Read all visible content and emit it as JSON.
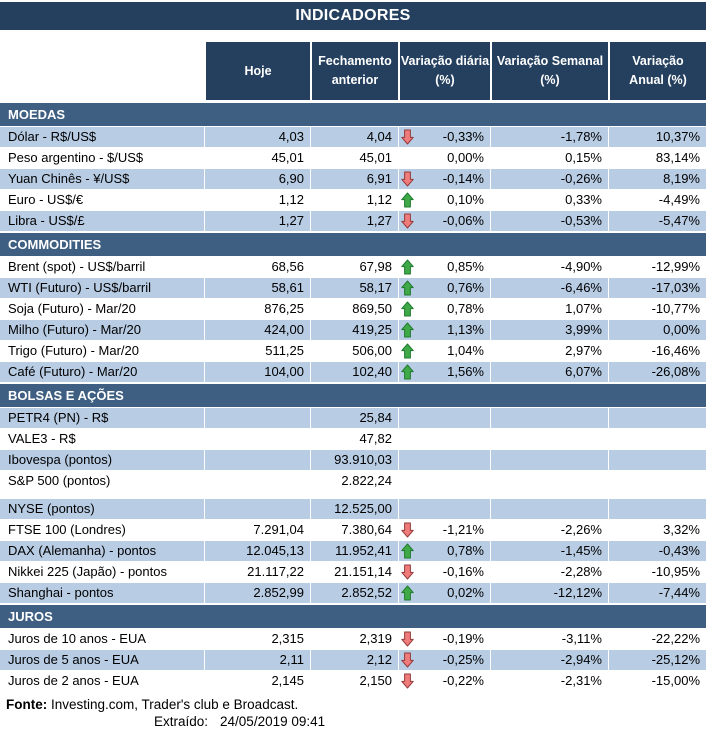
{
  "title": "INDICADORES",
  "columns": [
    {
      "id": "label",
      "lines": []
    },
    {
      "id": "hoje",
      "lines": [
        "Hoje"
      ]
    },
    {
      "id": "fechamento-anterior",
      "lines": [
        "Fechamento",
        "anterior"
      ]
    },
    {
      "id": "variacao-diaria",
      "lines": [
        "Variação diária",
        "(%)"
      ]
    },
    {
      "id": "variacao-semanal",
      "lines": [
        "Variação Semanal",
        "(%)"
      ]
    },
    {
      "id": "variacao-anual",
      "lines": [
        "Variação",
        "Anual (%)"
      ]
    }
  ],
  "sections": [
    {
      "id": "moedas",
      "name": "MOEDAS",
      "rows": [
        {
          "label": "Dólar - R$/US$",
          "hoje": "4,03",
          "fechamento": "4,04",
          "arrow": "down",
          "diaria": "-0,33%",
          "semanal": "-1,78%",
          "anual": "10,37%",
          "shaded": true
        },
        {
          "label": "Peso argentino - $/US$",
          "hoje": "45,01",
          "fechamento": "45,01",
          "arrow": null,
          "diaria": "0,00%",
          "semanal": "0,15%",
          "anual": "83,14%",
          "shaded": false
        },
        {
          "label": "Yuan Chinês - ¥/US$",
          "hoje": "6,90",
          "fechamento": "6,91",
          "arrow": "down",
          "diaria": "-0,14%",
          "semanal": "-0,26%",
          "anual": "8,19%",
          "shaded": true
        },
        {
          "label": "Euro - US$/€",
          "hoje": "1,12",
          "fechamento": "1,12",
          "arrow": "up",
          "diaria": "0,10%",
          "semanal": "0,33%",
          "anual": "-4,49%",
          "shaded": false
        },
        {
          "label": "Libra - US$/£",
          "hoje": "1,27",
          "fechamento": "1,27",
          "arrow": "down",
          "diaria": "-0,06%",
          "semanal": "-0,53%",
          "anual": "-5,47%",
          "shaded": true
        }
      ]
    },
    {
      "id": "commodities",
      "name": "COMMODITIES",
      "rows": [
        {
          "label": "Brent (spot) - US$/barril",
          "hoje": "68,56",
          "fechamento": "67,98",
          "arrow": "up",
          "diaria": "0,85%",
          "semanal": "-4,90%",
          "anual": "-12,99%",
          "shaded": false
        },
        {
          "label": "WTI (Futuro) - US$/barril",
          "hoje": "58,61",
          "fechamento": "58,17",
          "arrow": "up",
          "diaria": "0,76%",
          "semanal": "-6,46%",
          "anual": "-17,03%",
          "shaded": true
        },
        {
          "label": "Soja (Futuro) - Mar/20",
          "hoje": "876,25",
          "fechamento": "869,50",
          "arrow": "up",
          "diaria": "0,78%",
          "semanal": "1,07%",
          "anual": "-10,77%",
          "shaded": false
        },
        {
          "label": "Milho (Futuro) - Mar/20",
          "hoje": "424,00",
          "fechamento": "419,25",
          "arrow": "up",
          "diaria": "1,13%",
          "semanal": "3,99%",
          "anual": "0,00%",
          "shaded": true
        },
        {
          "label": "Trigo (Futuro) - Mar/20",
          "hoje": "511,25",
          "fechamento": "506,00",
          "arrow": "up",
          "diaria": "1,04%",
          "semanal": "2,97%",
          "anual": "-16,46%",
          "shaded": false
        },
        {
          "label": "Café (Futuro) - Mar/20",
          "hoje": "104,00",
          "fechamento": "102,40",
          "arrow": "up",
          "diaria": "1,56%",
          "semanal": "6,07%",
          "anual": "-26,08%",
          "shaded": true
        }
      ]
    },
    {
      "id": "bolsas-e-acoes",
      "name": "BOLSAS E AÇÕES",
      "rows": [
        {
          "label": "PETR4 (PN) - R$",
          "hoje": "",
          "fechamento": "25,84",
          "arrow": null,
          "diaria": "",
          "semanal": "",
          "anual": "",
          "shaded": true
        },
        {
          "label": "VALE3 - R$",
          "hoje": "",
          "fechamento": "47,82",
          "arrow": null,
          "diaria": "",
          "semanal": "",
          "anual": "",
          "shaded": false
        },
        {
          "label": "Ibovespa (pontos)",
          "hoje": "",
          "fechamento": "93.910,03",
          "arrow": null,
          "diaria": "",
          "semanal": "",
          "anual": "",
          "shaded": true
        },
        {
          "label": "S&P 500 (pontos)",
          "hoje": "",
          "fechamento": "2.822,24",
          "arrow": null,
          "diaria": "",
          "semanal": "",
          "anual": "",
          "shaded": false,
          "spacer_after": true
        },
        {
          "label": "NYSE (pontos)",
          "hoje": "",
          "fechamento": "12.525,00",
          "arrow": null,
          "diaria": "",
          "semanal": "",
          "anual": "",
          "shaded": true
        },
        {
          "label": "FTSE 100 (Londres)",
          "hoje": "7.291,04",
          "fechamento": "7.380,64",
          "arrow": "down",
          "diaria": "-1,21%",
          "semanal": "-2,26%",
          "anual": "3,32%",
          "shaded": false
        },
        {
          "label": "DAX (Alemanha) - pontos",
          "hoje": "12.045,13",
          "fechamento": "11.952,41",
          "arrow": "up",
          "diaria": "0,78%",
          "semanal": "-1,45%",
          "anual": "-0,43%",
          "shaded": true
        },
        {
          "label": "Nikkei 225 (Japão) - pontos",
          "hoje": "21.117,22",
          "fechamento": "21.151,14",
          "arrow": "down",
          "diaria": "-0,16%",
          "semanal": "-2,28%",
          "anual": "-10,95%",
          "shaded": false
        },
        {
          "label": "Shanghai - pontos",
          "hoje": "2.852,99",
          "fechamento": "2.852,52",
          "arrow": "up",
          "diaria": "0,02%",
          "semanal": "-12,12%",
          "anual": "-7,44%",
          "shaded": true
        }
      ]
    },
    {
      "id": "juros",
      "name": "JUROS",
      "rows": [
        {
          "label": "Juros de 10 anos - EUA",
          "hoje": "2,315",
          "fechamento": "2,319",
          "arrow": "down",
          "diaria": "-0,19%",
          "semanal": "-3,11%",
          "anual": "-22,22%",
          "shaded": false
        },
        {
          "label": "Juros de 5 anos - EUA",
          "hoje": "2,11",
          "fechamento": "2,12",
          "arrow": "down",
          "diaria": "-0,25%",
          "semanal": "-2,94%",
          "anual": "-25,12%",
          "shaded": true
        },
        {
          "label": "Juros de 2 anos - EUA",
          "hoje": "2,145",
          "fechamento": "2,150",
          "arrow": "down",
          "diaria": "-0,22%",
          "semanal": "-2,31%",
          "anual": "-15,00%",
          "shaded": false
        }
      ]
    }
  ],
  "footer": {
    "fonte_label": "Fonte:",
    "fonte_text": "Investing.com, Trader's club e Broadcast.",
    "extraido_label": "Extraído:",
    "extraido_value": "24/05/2019 09:41"
  },
  "colors": {
    "header_navy": "#24405E",
    "section_blue": "#3E5F81",
    "row_light": "#B8CCE4",
    "arrow_up_fill": "#3FA948",
    "arrow_up_border": "#1F7A2E",
    "arrow_down_fill": "#EF7B7B",
    "arrow_down_border": "#933A3A"
  }
}
